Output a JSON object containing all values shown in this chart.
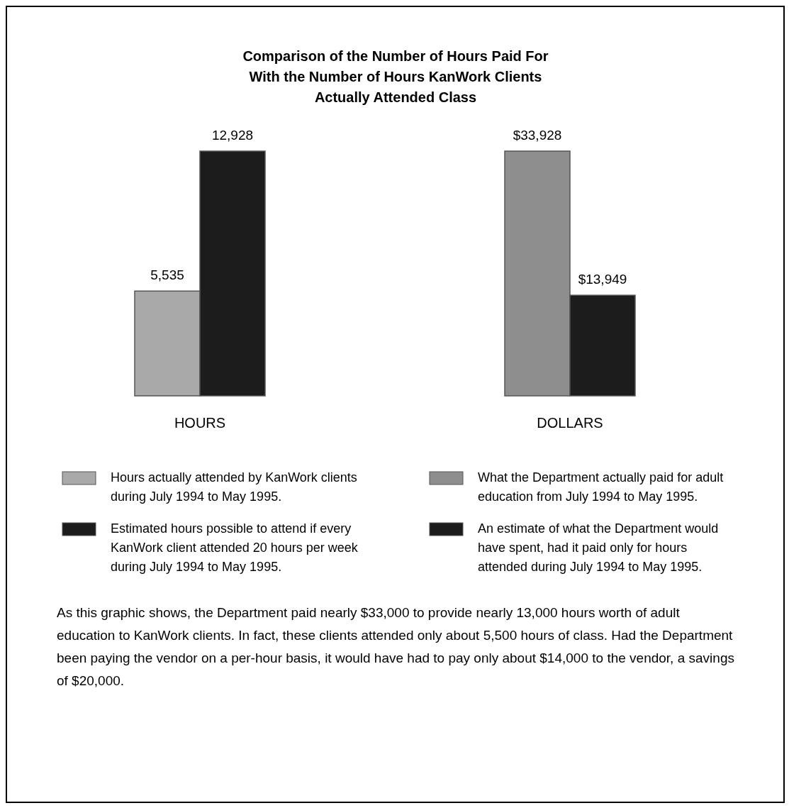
{
  "chart_data": [
    {
      "type": "bar",
      "title": "Comparison of the Number of Hours Paid For\nWith the Number of Hours KanWork Clients\nActually Attended Class",
      "categories": [
        null
      ],
      "xlabel": "HOURS",
      "legend": "bottom",
      "series": [
        {
          "name": "Hours actually attended by KanWork clients during July 1994 to May 1995.",
          "color": "#a9a9a9",
          "values": [
            5535
          ],
          "value_labels": [
            "5,535"
          ]
        },
        {
          "name": "Estimated hours possible to attend if every KanWork client attended 20 hours per week during July 1994 to May 1995.",
          "color": "#1c1c1c",
          "values": [
            12928
          ],
          "value_labels": [
            "12,928"
          ]
        }
      ]
    },
    {
      "type": "bar",
      "categories": [
        null
      ],
      "xlabel": "DOLLARS",
      "legend": "bottom",
      "series": [
        {
          "name": "What the Department actually paid for adult education from July 1994 to May 1995.",
          "color": "#8e8e8e",
          "values": [
            33928
          ],
          "value_labels": [
            "$33,928"
          ]
        },
        {
          "name": "An estimate of what the Department would have spent, had it paid only for hours attended during July 1994 to May 1995.",
          "color": "#1c1c1c",
          "values": [
            13949
          ],
          "value_labels": [
            "$13,949"
          ]
        }
      ],
      "annotations": [
        "As this graphic shows, the Department paid nearly $33,000 to provide nearly 13,000 hours worth of adult education to KanWork clients. In fact, these clients attended only about 5,500 hours of class. Had the Department been paying the vendor on a per-hour basis, it would have had to pay only about $14,000 to the vendor, a savings of $20,000."
      ]
    }
  ]
}
